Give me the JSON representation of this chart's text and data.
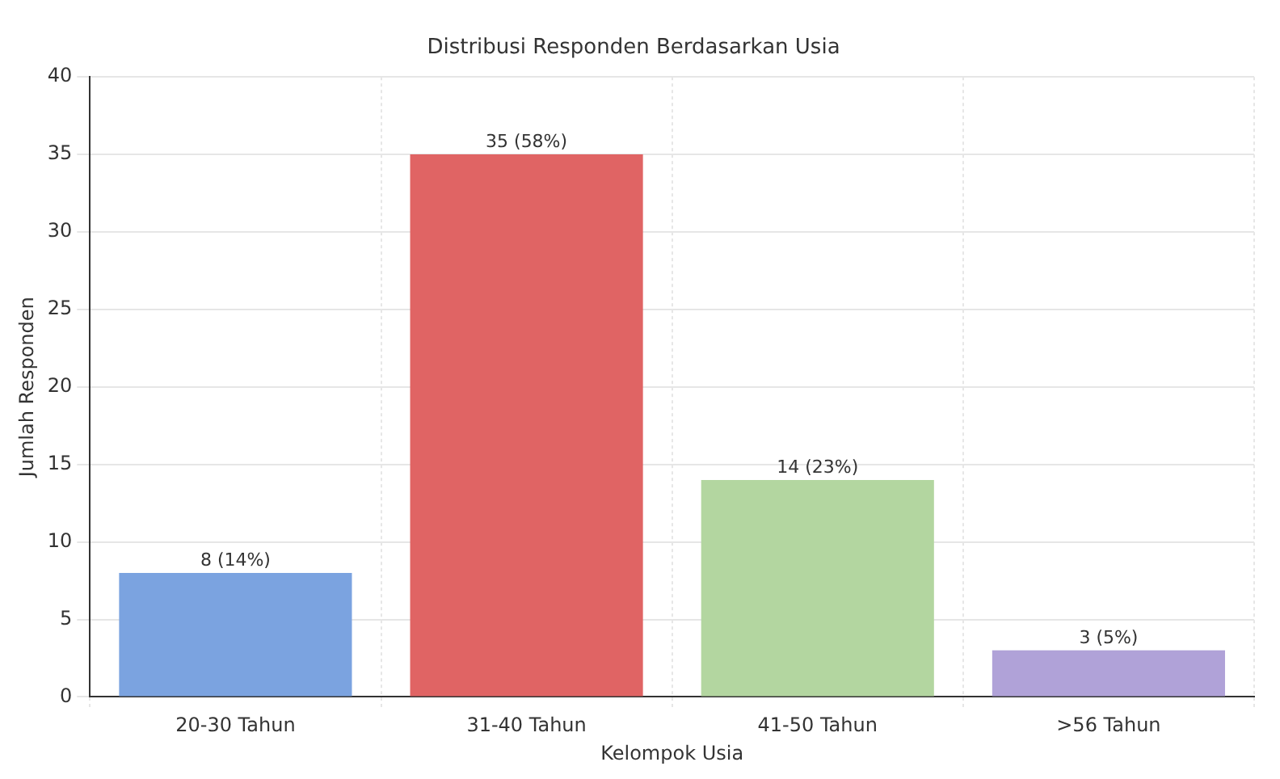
{
  "chart_data": {
    "type": "bar",
    "title": "Distribusi Responden Berdasarkan Usia",
    "xlabel": "Kelompok Usia",
    "ylabel": "Jumlah Responden",
    "categories": [
      "20-30 Tahun",
      "31-40 Tahun",
      "41-50 Tahun",
      ">56 Tahun"
    ],
    "values": [
      8,
      35,
      14,
      3
    ],
    "colors": [
      "#7ba3e0",
      "#e06464",
      "#b3d6a0",
      "#b0a2d8"
    ],
    "value_labels": [
      "8 (14%)",
      "35 (58%)",
      "14 (23%)",
      "3 (5%)"
    ],
    "ylim": [
      0,
      40
    ],
    "yticks": [
      0,
      5,
      10,
      15,
      20,
      25,
      30,
      35,
      40
    ],
    "grid": true
  }
}
